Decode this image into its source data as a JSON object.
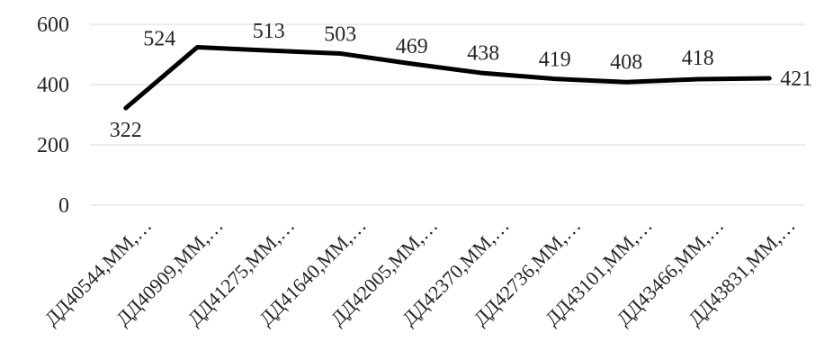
{
  "chart_data": {
    "type": "line",
    "categories": [
      "ДД40544,ММ,…",
      "ДД40909,ММ,…",
      "ДД41275,ММ,…",
      "ДД41640,ММ,…",
      "ДД42005,ММ,…",
      "ДД42370,ММ,…",
      "ДД42736,ММ,…",
      "ДД43101,ММ,…",
      "ДД43466,ММ,…",
      "ДД43831,ММ,…"
    ],
    "series": [
      {
        "values": [
          322,
          524,
          513,
          503,
          469,
          438,
          419,
          408,
          418,
          421
        ]
      }
    ],
    "data_labels": [
      "322",
      "524",
      "513",
      "503",
      "469",
      "438",
      "419",
      "408",
      "418",
      "421"
    ],
    "y_ticks": [
      "0",
      "200",
      "400",
      "600"
    ],
    "ylim": [
      0,
      600
    ],
    "grid": true,
    "legend": "none",
    "colors": {
      "line": "#000000",
      "grid": "#d9d9d9",
      "text": "#262626"
    }
  }
}
